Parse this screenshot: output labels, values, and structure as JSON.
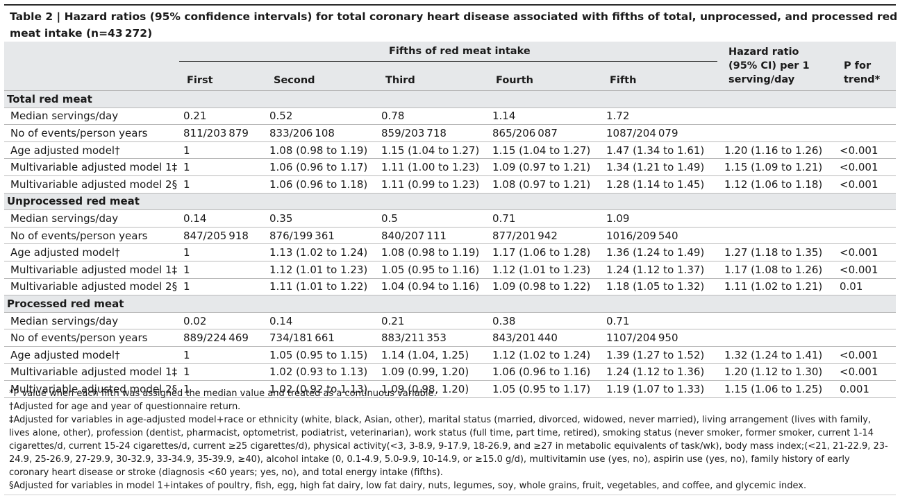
{
  "title": "Table 2 | Hazard ratios (95% confidence intervals) for total coronary heart disease associated with fifths of total, unprocessed, and processed red meat intake (n=43 272)",
  "header": {
    "group_label": "Fifths of red meat intake",
    "columns": [
      "First",
      "Second",
      "Third",
      "Fourth",
      "Fifth"
    ],
    "hr_label": "Hazard ratio (95% CI) per 1 serving/day",
    "hr_line1": "Hazard ratio",
    "hr_line2": "(95% CI) per 1",
    "hr_line3": "serving/day",
    "p_line1": "P for",
    "p_line2": "trend*"
  },
  "sections": [
    {
      "name": "Total red meat",
      "rows": [
        {
          "label": "Median servings/day",
          "cells": [
            "0.21",
            "0.52",
            "0.78",
            "1.14",
            "1.72",
            "",
            ""
          ]
        },
        {
          "label": "No of events/person years",
          "cells": [
            "811/203 879",
            "833/206 108",
            "859/203 718",
            "865/206 087",
            "1087/204 079",
            "",
            ""
          ]
        },
        {
          "label": "Age adjusted model†",
          "cells": [
            "1",
            "1.08 (0.98 to 1.19)",
            "1.15 (1.04 to 1.27)",
            "1.15 (1.04 to 1.27)",
            "1.47 (1.34 to 1.61)",
            "1.20 (1.16 to 1.26)",
            "<0.001"
          ]
        },
        {
          "label": "Multivariable adjusted model 1‡",
          "cells": [
            "1",
            "1.06 (0.96 to 1.17)",
            "1.11 (1.00 to 1.23)",
            "1.09 (0.97 to 1.21)",
            "1.34 (1.21 to 1.49)",
            "1.15 (1.09 to 1.21)",
            "<0.001"
          ]
        },
        {
          "label": "Multivariable adjusted model 2§",
          "cells": [
            "1",
            "1.06 (0.96 to 1.18)",
            "1.11 (0.99 to 1.23)",
            "1.08 (0.97 to 1.21)",
            "1.28 (1.14 to 1.45)",
            "1.12 (1.06 to 1.18)",
            "<0.001"
          ]
        }
      ]
    },
    {
      "name": "Unprocessed red meat",
      "rows": [
        {
          "label": "Median servings/day",
          "cells": [
            "0.14",
            "0.35",
            "0.5",
            "0.71",
            "1.09",
            "",
            ""
          ]
        },
        {
          "label": "No of events/person years",
          "cells": [
            "847/205 918",
            "876/199 361",
            "840/207 111",
            "877/201 942",
            "1016/209 540",
            "",
            ""
          ]
        },
        {
          "label": "Age adjusted model†",
          "cells": [
            "1",
            "1.13 (1.02 to 1.24)",
            "1.08 (0.98 to 1.19)",
            "1.17 (1.06 to 1.28)",
            "1.36 (1.24 to 1.49)",
            "1.27 (1.18 to 1.35)",
            "<0.001"
          ]
        },
        {
          "label": "Multivariable adjusted model 1‡",
          "cells": [
            "1",
            "1.12 (1.01 to 1.23)",
            "1.05 (0.95 to 1.16)",
            "1.12 (1.01 to 1.23)",
            "1.24 (1.12 to 1.37)",
            "1.17 (1.08 to 1.26)",
            "<0.001"
          ]
        },
        {
          "label": "Multivariable adjusted model 2§",
          "cells": [
            "1",
            "1.11 (1.01 to 1.22)",
            "1.04 (0.94 to 1.16)",
            "1.09 (0.98 to 1.22)",
            "1.18 (1.05 to 1.32)",
            "1.11 (1.02 to 1.21)",
            "0.01"
          ]
        }
      ]
    },
    {
      "name": "Processed red meat",
      "rows": [
        {
          "label": "Median servings/day",
          "cells": [
            "0.02",
            "0.14",
            "0.21",
            "0.38",
            "0.71",
            "",
            ""
          ]
        },
        {
          "label": "No of events/person years",
          "cells": [
            "889/224 469",
            "734/181 661",
            "883/211 353",
            "843/201 440",
            "1107/204 950",
            "",
            ""
          ]
        },
        {
          "label": "Age adjusted model†",
          "cells": [
            "1",
            "1.05 (0.95 to 1.15)",
            "1.14 (1.04, 1.25)",
            "1.12 (1.02 to 1.24)",
            "1.39 (1.27 to 1.52)",
            "1.32 (1.24 to 1.41)",
            "<0.001"
          ]
        },
        {
          "label": "Multivariable adjusted model 1‡",
          "cells": [
            "1",
            "1.02 (0.93 to 1.13)",
            "1.09 (0.99, 1.20)",
            "1.06 (0.96 to 1.16)",
            "1.24 (1.12 to 1.36)",
            "1.20 (1.12 to 1.30)",
            "<0.001"
          ]
        },
        {
          "label": "Multivariable adjusted model 2§",
          "cells": [
            "1",
            "1.02 (0.92 to 1.13)",
            "1.09 (0.98, 1.20)",
            "1.05 (0.95 to 1.17)",
            "1.19 (1.07 to 1.33)",
            "1.15 (1.06 to 1.25)",
            "0.001"
          ]
        }
      ]
    }
  ],
  "footnotes": [
    "*P value when each fifth was assigned the median value and treated as a continuous variable.",
    "†Adjusted for age and year of questionnaire return.",
    "‡Adjusted for variables in age-adjusted model+race or ethnicity (white, black, Asian, other), marital status (married, divorced, widowed, never married), living arrangement (lives with family, lives alone, other), profession (dentist, pharmacist, optometrist, podiatrist, veterinarian), work status (full time, part time, retired), smoking status (never smoker, former smoker, current 1-14 cigarettes/d, current 15-24 cigarettes/d, current ≥25 cigarettes/d), physical activity(<3, 3-8.9, 9-17.9, 18-26.9, and ≥27 in metabolic equivalents of task/wk), body mass index;(<21, 21-22.9, 23-24.9, 25-26.9, 27-29.9, 30-32.9, 33-34.9, 35-39.9, ≥40), alcohol intake (0, 0.1-4.9, 5.0-9.9, 10-14.9, or ≥15.0 g/d), multivitamin use (yes, no), aspirin use (yes, no), family history of early coronary heart disease or stroke (diagnosis <60 years; yes, no), and total energy intake (fifths).",
    "§Adjusted for variables in model 1+intakes of poultry, fish, egg, high fat dairy, low fat dairy, nuts, legumes, soy, whole grains, fruit, vegetables, and coffee, and glycemic index."
  ]
}
